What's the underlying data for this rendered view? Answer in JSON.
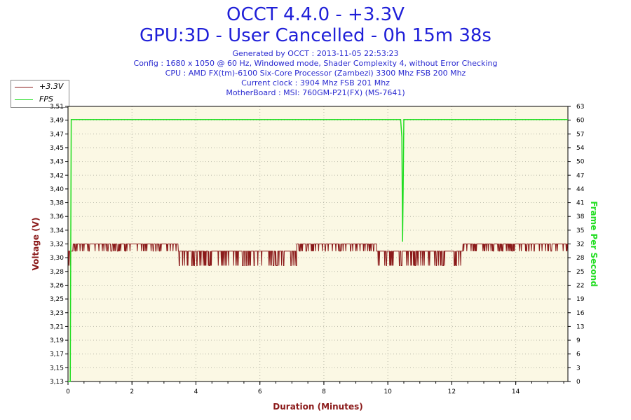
{
  "header": {
    "title": "OCCT 4.4.0 - +3.3V",
    "subtitle": "GPU:3D - User Cancelled - 0h 15m 38s",
    "info_lines": [
      "Generated by OCCT : 2013-11-05 22:53:23",
      "Config : 1680 x 1050 @ 60 Hz, Windowed mode, Shader Complexity 4, without Error Checking",
      "CPU : AMD FX(tm)-6100 Six-Core Processor (Zambezi) 3300 Mhz FSB 200 Mhz",
      "Current clock : 3904 Mhz FSB 201 Mhz",
      "MotherBoard : MSI: 760GM-P21(FX) (MS-7641)"
    ]
  },
  "colors": {
    "voltage": "#8b1a1a",
    "fps": "#22dd22",
    "plot_bg": "#fbf8e4",
    "title": "#1f1fd8"
  },
  "chart_data": {
    "type": "line",
    "title": "OCCT 4.4.0 - +3.3V",
    "xlabel": "Duration (Minutes)",
    "ylabel_left": "Voltage (V)",
    "ylabel_right": "Frame Per Second",
    "xlim": [
      0,
      15.63
    ],
    "ylim_left": [
      3.13,
      3.51
    ],
    "ylim_right": [
      0,
      63
    ],
    "x_ticks": [
      "0",
      "2",
      "4",
      "6",
      "8",
      "10",
      "12",
      "14"
    ],
    "y_left_ticks": [
      "3,13",
      "3,15",
      "3,17",
      "3,19",
      "3,21",
      "3,23",
      "3,25",
      "3,26",
      "3,28",
      "3,30",
      "3,32",
      "3,34",
      "3,36",
      "3,38",
      "3,40",
      "3,42",
      "3,43",
      "3,45",
      "3,47",
      "3,49",
      "3,51"
    ],
    "y_right_ticks": [
      "0",
      "3",
      "6",
      "9",
      "13",
      "16",
      "19",
      "22",
      "25",
      "28",
      "32",
      "35",
      "38",
      "41",
      "44",
      "47",
      "50",
      "54",
      "57",
      "60",
      "63"
    ],
    "grid": true,
    "legend_position": "top-left",
    "series": [
      {
        "name": "+3.3V",
        "axis": "left",
        "segments": [
          {
            "x_start": 0.0,
            "x_end": 0.15,
            "base": 3.31,
            "alt": 3.29
          },
          {
            "x_start": 0.15,
            "x_end": 3.45,
            "base": 3.32,
            "alt": 3.31
          },
          {
            "x_start": 3.45,
            "x_end": 7.15,
            "base": 3.31,
            "alt": 3.29
          },
          {
            "x_start": 7.15,
            "x_end": 9.65,
            "base": 3.32,
            "alt": 3.31
          },
          {
            "x_start": 9.65,
            "x_end": 12.35,
            "base": 3.31,
            "alt": 3.29
          },
          {
            "x_start": 12.35,
            "x_end": 15.63,
            "base": 3.32,
            "alt": 3.31
          }
        ]
      },
      {
        "name": "FPS",
        "axis": "right",
        "points": [
          [
            0.0,
            0
          ],
          [
            0.07,
            0
          ],
          [
            0.1,
            60
          ],
          [
            10.4,
            60
          ],
          [
            10.44,
            56
          ],
          [
            10.46,
            32
          ],
          [
            10.48,
            45
          ],
          [
            10.5,
            60
          ],
          [
            15.63,
            60
          ]
        ]
      }
    ]
  }
}
